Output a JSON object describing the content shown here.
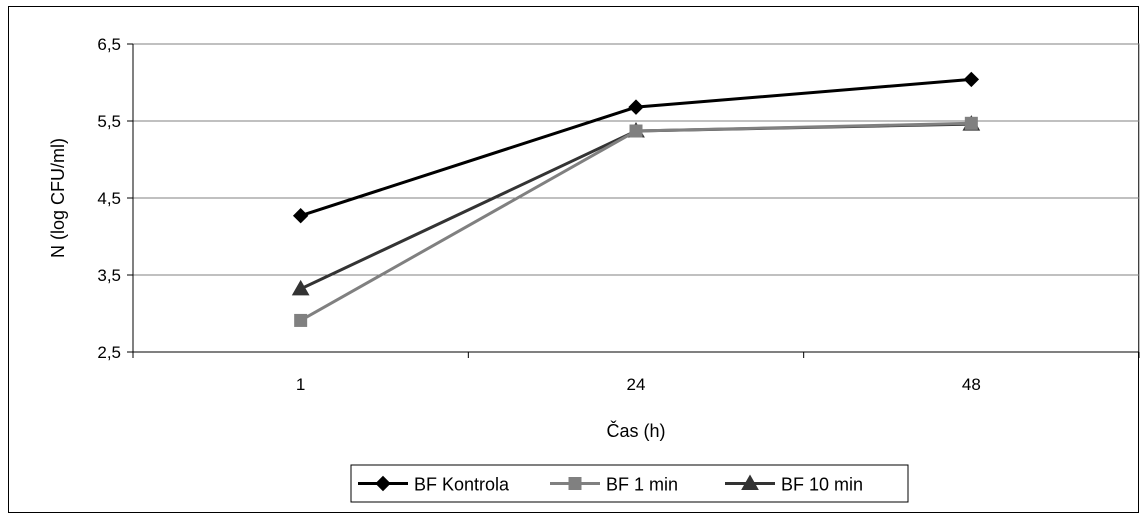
{
  "chart_data": {
    "type": "line",
    "xlabel": "Čas (h)",
    "ylabel": "N (log CFU/ml)",
    "categories": [
      "1",
      "24",
      "48"
    ],
    "ylim": [
      2.5,
      6.5
    ],
    "yticks": [
      "2,5",
      "3,5",
      "4,5",
      "5,5",
      "6,5"
    ],
    "ytick_values": [
      2.5,
      3.5,
      4.5,
      5.5,
      6.5
    ],
    "grid": true,
    "legend_position": "bottom",
    "series": [
      {
        "name": "BF Kontrola",
        "values": [
          4.27,
          5.68,
          6.04
        ],
        "color": "#000000",
        "marker": "diamond"
      },
      {
        "name": "BF 1 min",
        "values": [
          2.91,
          5.37,
          5.47
        ],
        "color": "#808080",
        "marker": "square"
      },
      {
        "name": "BF 10 min",
        "values": [
          3.32,
          5.37,
          5.46
        ],
        "color": "#333333",
        "marker": "triangle"
      }
    ]
  }
}
